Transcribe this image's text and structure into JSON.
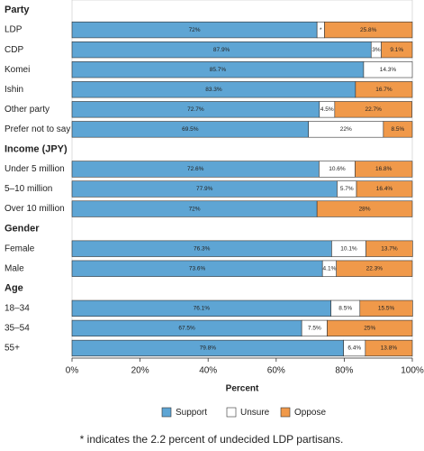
{
  "chart_data": {
    "type": "stacked-bar-horizontal",
    "groups": [
      {
        "name": "Party",
        "categories": [
          "LDP",
          "CDP",
          "Komei",
          "Ishin",
          "Other party",
          "Prefer not to say"
        ]
      },
      {
        "name": "Income (JPY)",
        "categories": [
          "Under 5 million",
          "5–10 million",
          "Over 10 million"
        ]
      },
      {
        "name": "Gender",
        "categories": [
          "Female",
          "Male"
        ]
      },
      {
        "name": "Age",
        "categories": [
          "18–34",
          "35–54",
          "55+"
        ]
      }
    ],
    "series": [
      {
        "name": "Support",
        "color": "#5ea5d4",
        "values": [
          72,
          87.9,
          85.7,
          83.3,
          72.7,
          69.5,
          72.6,
          77.9,
          72,
          76.3,
          73.6,
          76.1,
          67.5,
          79.8
        ],
        "value_labels": [
          "72%",
          "87.9%",
          "85.7%",
          "83.3%",
          "72.7%",
          "69.5%",
          "72.6%",
          "77.9%",
          "72%",
          "76.3%",
          "73.6%",
          "76.1%",
          "67.5%",
          "79.8%"
        ]
      },
      {
        "name": "Unsure",
        "color": "#ffffff",
        "values": [
          2.2,
          3,
          14.3,
          null,
          4.5,
          22,
          10.6,
          5.7,
          null,
          10.1,
          4.1,
          8.5,
          7.5,
          6.4
        ],
        "value_labels": [
          "*",
          "3%",
          "14.3%",
          null,
          "4.5%",
          "22%",
          "10.6%",
          "5.7%",
          null,
          "10.1%",
          "4.1%",
          "8.5%",
          "7.5%",
          "6.4%"
        ]
      },
      {
        "name": "Oppose",
        "color": "#f0994a",
        "values": [
          25.8,
          9.1,
          null,
          16.7,
          22.7,
          8.5,
          16.8,
          16.4,
          28,
          13.7,
          22.3,
          15.5,
          25,
          13.8
        ],
        "value_labels": [
          "25.8%",
          "9.1%",
          null,
          "16.7%",
          "22.7%",
          "8.5%",
          "16.8%",
          "16.4%",
          "28%",
          "13.7%",
          "22.3%",
          "15.5%",
          "25%",
          "13.8%"
        ]
      }
    ],
    "x_label": "Percent",
    "xlim": [
      0,
      100
    ],
    "xticks": [
      {
        "value": 0,
        "label": "0%"
      },
      {
        "value": 20,
        "label": "20%"
      },
      {
        "value": 40,
        "label": "40%"
      },
      {
        "value": 60,
        "label": "60%"
      },
      {
        "value": 80,
        "label": "80%"
      },
      {
        "value": 100,
        "label": "100%"
      }
    ],
    "note": "* indicates the 2.2 percent of undecided LDP partisans."
  }
}
